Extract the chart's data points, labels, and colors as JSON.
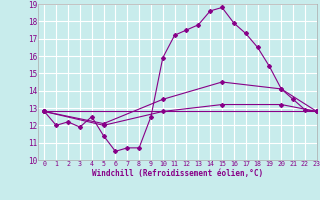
{
  "xlabel": "Windchill (Refroidissement éolien,°C)",
  "xlim": [
    -0.5,
    23
  ],
  "ylim": [
    10,
    19
  ],
  "yticks": [
    10,
    11,
    12,
    13,
    14,
    15,
    16,
    17,
    18,
    19
  ],
  "xticks": [
    0,
    1,
    2,
    3,
    4,
    5,
    6,
    7,
    8,
    9,
    10,
    11,
    12,
    13,
    14,
    15,
    16,
    17,
    18,
    19,
    20,
    21,
    22,
    23
  ],
  "background_color": "#c8ecec",
  "line_color": "#880088",
  "grid_color": "#ffffff",
  "lines": [
    {
      "x": [
        0,
        1,
        2,
        3,
        4,
        5,
        6,
        7,
        8,
        9,
        10,
        11,
        12,
        13,
        14,
        15,
        16,
        17,
        18,
        19,
        20,
        21,
        22,
        23
      ],
      "y": [
        12.8,
        12.0,
        12.2,
        11.9,
        12.5,
        11.4,
        10.5,
        10.7,
        10.7,
        12.5,
        15.9,
        17.2,
        17.5,
        17.8,
        18.6,
        18.8,
        17.9,
        17.3,
        16.5,
        15.4,
        14.1,
        13.5,
        12.9,
        12.8
      ]
    },
    {
      "x": [
        0,
        23
      ],
      "y": [
        12.8,
        12.8
      ]
    },
    {
      "x": [
        0,
        5,
        10,
        15,
        20,
        23
      ],
      "y": [
        12.8,
        12.1,
        13.5,
        14.5,
        14.1,
        12.8
      ]
    },
    {
      "x": [
        0,
        5,
        10,
        15,
        20,
        23
      ],
      "y": [
        12.8,
        12.0,
        12.8,
        13.2,
        13.2,
        12.8
      ]
    }
  ]
}
